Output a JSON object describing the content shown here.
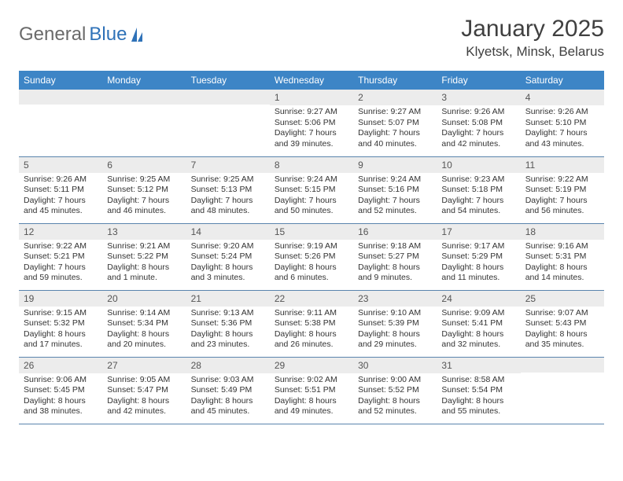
{
  "logo": {
    "text1": "General",
    "text2": "Blue"
  },
  "header": {
    "title": "January 2025",
    "location": "Klyetsk, Minsk, Belarus"
  },
  "style": {
    "header_bg": "#3d85c6",
    "header_fg": "#ffffff",
    "daynum_bg": "#ececec",
    "rule_color": "#5a84ad",
    "body_font_size": 10.5,
    "title_font_size": 30
  },
  "day_names": [
    "Sunday",
    "Monday",
    "Tuesday",
    "Wednesday",
    "Thursday",
    "Friday",
    "Saturday"
  ],
  "weeks": [
    [
      {
        "n": "",
        "sunrise": "",
        "sunset": "",
        "daylight": ""
      },
      {
        "n": "",
        "sunrise": "",
        "sunset": "",
        "daylight": ""
      },
      {
        "n": "",
        "sunrise": "",
        "sunset": "",
        "daylight": ""
      },
      {
        "n": "1",
        "sunrise": "9:27 AM",
        "sunset": "5:06 PM",
        "daylight": "7 hours and 39 minutes."
      },
      {
        "n": "2",
        "sunrise": "9:27 AM",
        "sunset": "5:07 PM",
        "daylight": "7 hours and 40 minutes."
      },
      {
        "n": "3",
        "sunrise": "9:26 AM",
        "sunset": "5:08 PM",
        "daylight": "7 hours and 42 minutes."
      },
      {
        "n": "4",
        "sunrise": "9:26 AM",
        "sunset": "5:10 PM",
        "daylight": "7 hours and 43 minutes."
      }
    ],
    [
      {
        "n": "5",
        "sunrise": "9:26 AM",
        "sunset": "5:11 PM",
        "daylight": "7 hours and 45 minutes."
      },
      {
        "n": "6",
        "sunrise": "9:25 AM",
        "sunset": "5:12 PM",
        "daylight": "7 hours and 46 minutes."
      },
      {
        "n": "7",
        "sunrise": "9:25 AM",
        "sunset": "5:13 PM",
        "daylight": "7 hours and 48 minutes."
      },
      {
        "n": "8",
        "sunrise": "9:24 AM",
        "sunset": "5:15 PM",
        "daylight": "7 hours and 50 minutes."
      },
      {
        "n": "9",
        "sunrise": "9:24 AM",
        "sunset": "5:16 PM",
        "daylight": "7 hours and 52 minutes."
      },
      {
        "n": "10",
        "sunrise": "9:23 AM",
        "sunset": "5:18 PM",
        "daylight": "7 hours and 54 minutes."
      },
      {
        "n": "11",
        "sunrise": "9:22 AM",
        "sunset": "5:19 PM",
        "daylight": "7 hours and 56 minutes."
      }
    ],
    [
      {
        "n": "12",
        "sunrise": "9:22 AM",
        "sunset": "5:21 PM",
        "daylight": "7 hours and 59 minutes."
      },
      {
        "n": "13",
        "sunrise": "9:21 AM",
        "sunset": "5:22 PM",
        "daylight": "8 hours and 1 minute."
      },
      {
        "n": "14",
        "sunrise": "9:20 AM",
        "sunset": "5:24 PM",
        "daylight": "8 hours and 3 minutes."
      },
      {
        "n": "15",
        "sunrise": "9:19 AM",
        "sunset": "5:26 PM",
        "daylight": "8 hours and 6 minutes."
      },
      {
        "n": "16",
        "sunrise": "9:18 AM",
        "sunset": "5:27 PM",
        "daylight": "8 hours and 9 minutes."
      },
      {
        "n": "17",
        "sunrise": "9:17 AM",
        "sunset": "5:29 PM",
        "daylight": "8 hours and 11 minutes."
      },
      {
        "n": "18",
        "sunrise": "9:16 AM",
        "sunset": "5:31 PM",
        "daylight": "8 hours and 14 minutes."
      }
    ],
    [
      {
        "n": "19",
        "sunrise": "9:15 AM",
        "sunset": "5:32 PM",
        "daylight": "8 hours and 17 minutes."
      },
      {
        "n": "20",
        "sunrise": "9:14 AM",
        "sunset": "5:34 PM",
        "daylight": "8 hours and 20 minutes."
      },
      {
        "n": "21",
        "sunrise": "9:13 AM",
        "sunset": "5:36 PM",
        "daylight": "8 hours and 23 minutes."
      },
      {
        "n": "22",
        "sunrise": "9:11 AM",
        "sunset": "5:38 PM",
        "daylight": "8 hours and 26 minutes."
      },
      {
        "n": "23",
        "sunrise": "9:10 AM",
        "sunset": "5:39 PM",
        "daylight": "8 hours and 29 minutes."
      },
      {
        "n": "24",
        "sunrise": "9:09 AM",
        "sunset": "5:41 PM",
        "daylight": "8 hours and 32 minutes."
      },
      {
        "n": "25",
        "sunrise": "9:07 AM",
        "sunset": "5:43 PM",
        "daylight": "8 hours and 35 minutes."
      }
    ],
    [
      {
        "n": "26",
        "sunrise": "9:06 AM",
        "sunset": "5:45 PM",
        "daylight": "8 hours and 38 minutes."
      },
      {
        "n": "27",
        "sunrise": "9:05 AM",
        "sunset": "5:47 PM",
        "daylight": "8 hours and 42 minutes."
      },
      {
        "n": "28",
        "sunrise": "9:03 AM",
        "sunset": "5:49 PM",
        "daylight": "8 hours and 45 minutes."
      },
      {
        "n": "29",
        "sunrise": "9:02 AM",
        "sunset": "5:51 PM",
        "daylight": "8 hours and 49 minutes."
      },
      {
        "n": "30",
        "sunrise": "9:00 AM",
        "sunset": "5:52 PM",
        "daylight": "8 hours and 52 minutes."
      },
      {
        "n": "31",
        "sunrise": "8:58 AM",
        "sunset": "5:54 PM",
        "daylight": "8 hours and 55 minutes."
      },
      {
        "n": "",
        "sunrise": "",
        "sunset": "",
        "daylight": ""
      }
    ]
  ],
  "labels": {
    "sunrise": "Sunrise:",
    "sunset": "Sunset:",
    "daylight": "Daylight:"
  }
}
